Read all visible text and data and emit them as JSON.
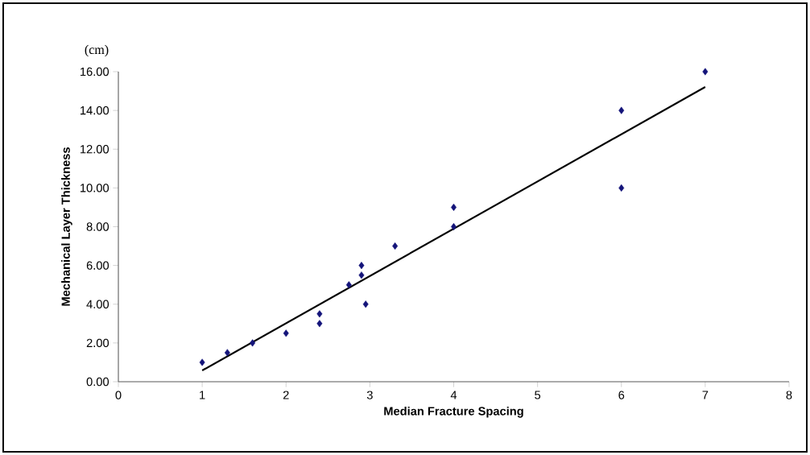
{
  "chart_data": {
    "type": "scatter",
    "xlabel": "Median Fracture Spacing",
    "ylabel": "Mechanical Layer Thickness",
    "annotations": [
      "(cm)"
    ],
    "xlim": [
      0,
      8
    ],
    "xticks": [
      0,
      1,
      2,
      3,
      4,
      5,
      6,
      7,
      8
    ],
    "ylim": [
      0,
      16
    ],
    "yticks": [
      {
        "value": 0,
        "label": "0.00"
      },
      {
        "value": 2,
        "label": "2.00"
      },
      {
        "value": 4,
        "label": "4.00"
      },
      {
        "value": 6,
        "label": "6.00"
      },
      {
        "value": 8,
        "label": "8.00"
      },
      {
        "value": 10,
        "label": "10.00"
      },
      {
        "value": 12,
        "label": "12.00"
      },
      {
        "value": 14,
        "label": "14.00"
      },
      {
        "value": 16,
        "label": "16.00"
      }
    ],
    "grid": false,
    "series": [
      {
        "marker": "diamond",
        "color": "#14147a",
        "x": [
          1,
          1.3,
          1.6,
          2,
          2.4,
          2.4,
          2.75,
          2.9,
          2.9,
          2.95,
          3.3,
          4,
          4,
          6,
          6,
          7
        ],
        "values": [
          1,
          1.5,
          2,
          2.5,
          3,
          3.5,
          5,
          6,
          5.5,
          4,
          7,
          9,
          8,
          14,
          10,
          16
        ]
      },
      {
        "type": "line",
        "color": "#000000",
        "line_style": "solid",
        "x": [
          1,
          7
        ],
        "values": [
          0.58,
          15.21
        ]
      }
    ]
  }
}
